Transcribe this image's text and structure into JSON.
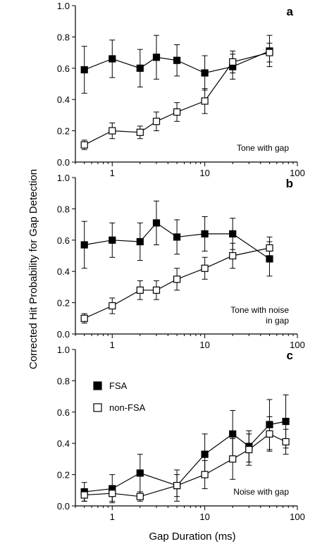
{
  "figure": {
    "ylabel": "Corrected Hit Probability for Gap Detection",
    "xlabel": "Gap Duration (ms)"
  },
  "legend": {
    "fsa_label": "FSA",
    "nonfsa_label": "non-FSA"
  },
  "chart_data": [
    {
      "type": "line",
      "panel": "a",
      "annotation": [
        "Tone with gap"
      ],
      "x_scale": "log",
      "xlim": [
        0.4,
        100
      ],
      "ylim": [
        0,
        1
      ],
      "x_ticks": [
        1,
        10,
        100
      ],
      "y_ticks": [
        0.0,
        0.2,
        0.4,
        0.6,
        0.8,
        1.0
      ],
      "series": [
        {
          "key": "fsa",
          "x": [
            0.5,
            1,
            2,
            3,
            5,
            10,
            20,
            50
          ],
          "y": [
            0.59,
            0.66,
            0.6,
            0.67,
            0.65,
            0.57,
            0.61,
            0.71
          ],
          "err": [
            0.15,
            0.12,
            0.12,
            0.14,
            0.1,
            0.11,
            0.08,
            0.1
          ]
        },
        {
          "key": "nonfsa",
          "x": [
            0.5,
            1,
            2,
            3,
            5,
            10,
            20,
            50
          ],
          "y": [
            0.11,
            0.2,
            0.19,
            0.26,
            0.32,
            0.39,
            0.64,
            0.7
          ],
          "err": [
            0.03,
            0.05,
            0.04,
            0.06,
            0.06,
            0.08,
            0.07,
            0.06
          ]
        }
      ]
    },
    {
      "type": "line",
      "panel": "b",
      "annotation": [
        "Tone with noise",
        "in gap"
      ],
      "x_scale": "log",
      "xlim": [
        0.4,
        100
      ],
      "ylim": [
        0,
        1
      ],
      "x_ticks": [
        1,
        10,
        100
      ],
      "y_ticks": [
        0.0,
        0.2,
        0.4,
        0.6,
        0.8,
        1.0
      ],
      "series": [
        {
          "key": "fsa",
          "x": [
            0.5,
            1,
            2,
            3,
            5,
            10,
            20,
            50
          ],
          "y": [
            0.57,
            0.6,
            0.59,
            0.71,
            0.62,
            0.64,
            0.64,
            0.48
          ],
          "err": [
            0.15,
            0.11,
            0.12,
            0.14,
            0.11,
            0.11,
            0.1,
            0.11
          ]
        },
        {
          "key": "nonfsa",
          "x": [
            0.5,
            1,
            2,
            3,
            5,
            10,
            20,
            50
          ],
          "y": [
            0.1,
            0.18,
            0.28,
            0.28,
            0.35,
            0.42,
            0.5,
            0.55
          ],
          "err": [
            0.03,
            0.05,
            0.06,
            0.06,
            0.07,
            0.07,
            0.08,
            0.07
          ]
        }
      ]
    },
    {
      "type": "line",
      "panel": "c",
      "annotation": [
        "Noise with gap"
      ],
      "x_scale": "log",
      "xlim": [
        0.4,
        100
      ],
      "ylim": [
        0,
        1
      ],
      "x_ticks": [
        1,
        10,
        100
      ],
      "y_ticks": [
        0.0,
        0.2,
        0.4,
        0.6,
        0.8,
        1.0
      ],
      "series": [
        {
          "key": "fsa",
          "x": [
            0.5,
            1,
            2,
            5,
            10,
            20,
            30,
            50,
            75
          ],
          "y": [
            0.09,
            0.11,
            0.21,
            0.13,
            0.33,
            0.46,
            0.38,
            0.52,
            0.54
          ],
          "err": [
            0.06,
            0.09,
            0.12,
            0.1,
            0.13,
            0.15,
            0.1,
            0.16,
            0.17
          ]
        },
        {
          "key": "nonfsa",
          "x": [
            0.5,
            1,
            2,
            5,
            10,
            20,
            30,
            50,
            75
          ],
          "y": [
            0.07,
            0.08,
            0.06,
            0.13,
            0.2,
            0.3,
            0.36,
            0.46,
            0.41
          ],
          "err": [
            0.04,
            0.05,
            0.03,
            0.07,
            0.09,
            0.13,
            0.1,
            0.11,
            0.08
          ]
        }
      ]
    }
  ]
}
